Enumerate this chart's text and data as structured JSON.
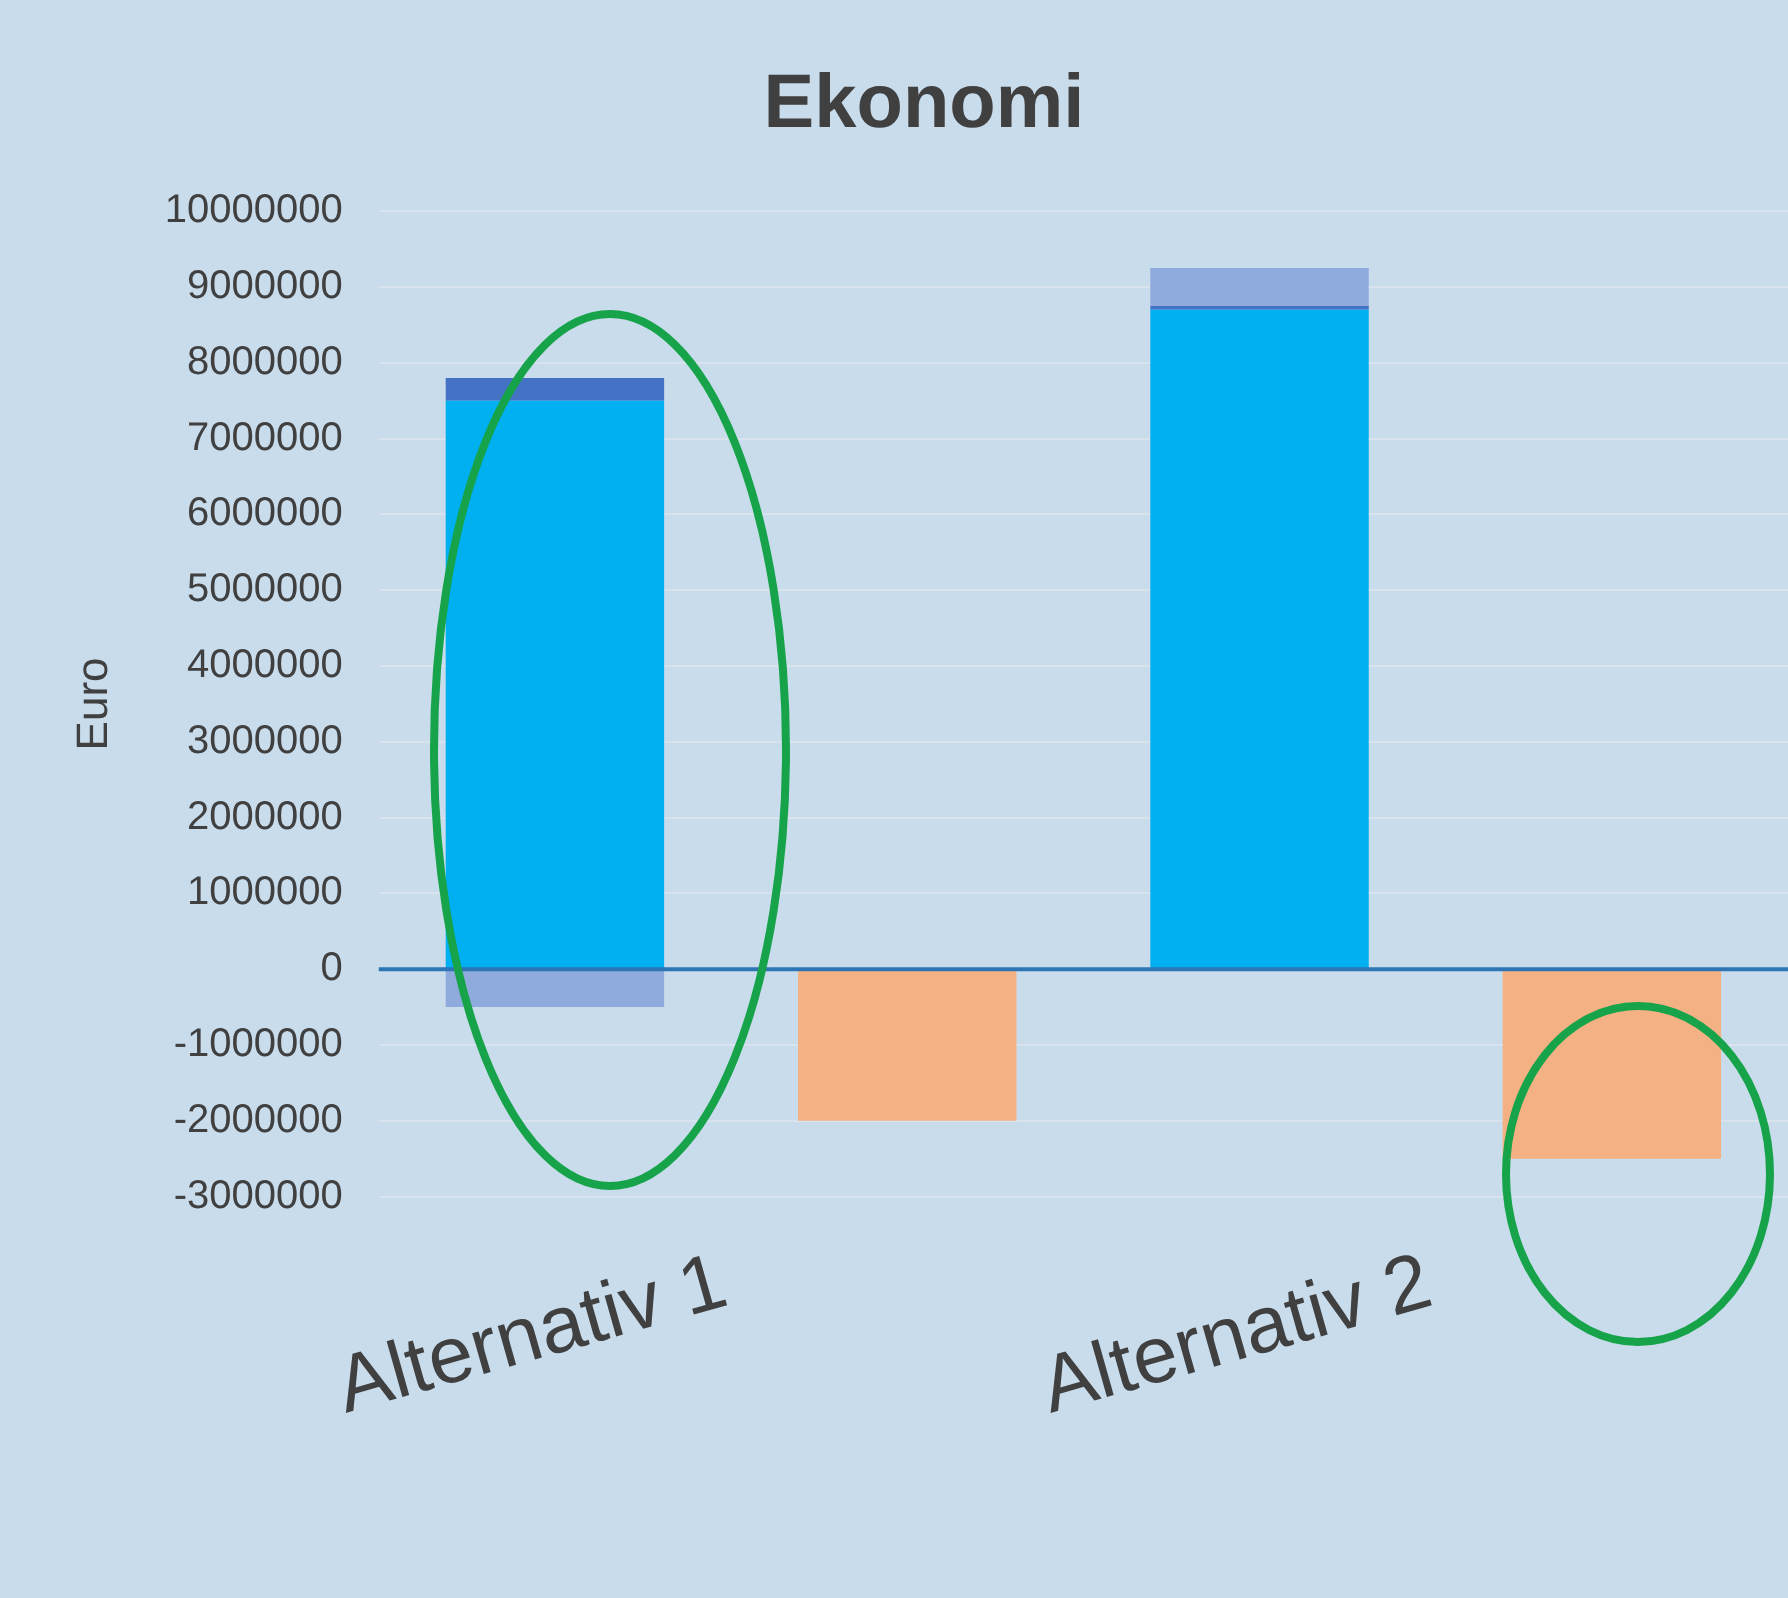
{
  "chart_data": {
    "type": "bar",
    "title": "Ekonomi",
    "ylabel": "Euro",
    "stacked": true,
    "categories": [
      "Alternativ 1",
      null,
      "Alternativ 2",
      null
    ],
    "series": [
      {
        "color": "#00b0f0",
        "values": [
          7500000,
          null,
          8700000,
          null
        ]
      },
      {
        "color": "#4472c4",
        "values": [
          300000,
          null,
          50000,
          null
        ]
      },
      {
        "color": "#8faadc",
        "values": [
          -500000,
          null,
          500000,
          null
        ]
      },
      {
        "color": "#f4b183",
        "values": [
          null,
          -2000000,
          null,
          -2500000
        ]
      }
    ],
    "ylim": [
      -3000000,
      10000000
    ],
    "yticks": [
      -3000000,
      -2000000,
      -1000000,
      0,
      1000000,
      2000000,
      3000000,
      4000000,
      5000000,
      6000000,
      7000000,
      8000000,
      9000000,
      10000000
    ],
    "ref_lines": [
      {
        "axis": "y",
        "value": 0,
        "color": "#2e75b6"
      }
    ],
    "grid": "y",
    "legend": false
  }
}
